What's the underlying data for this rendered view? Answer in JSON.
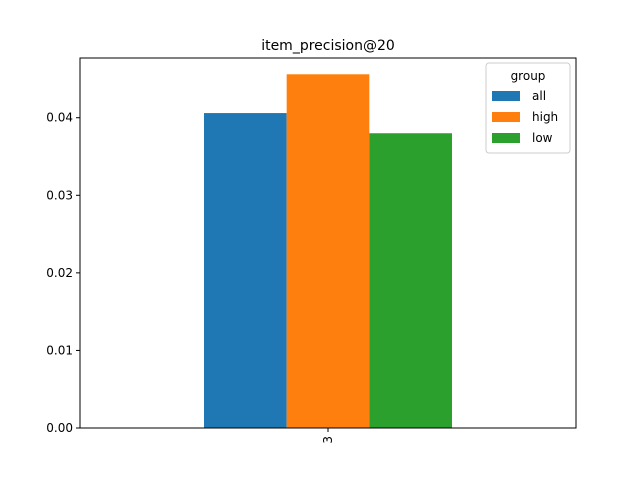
{
  "chart_data": {
    "type": "bar",
    "title": "item_precision@20",
    "xlabel": "",
    "ylabel": "",
    "categories": [
      "3"
    ],
    "series": [
      {
        "name": "all",
        "values": [
          0.0406
        ],
        "color": "#1f77b4"
      },
      {
        "name": "high",
        "values": [
          0.0456
        ],
        "color": "#ff7f0e"
      },
      {
        "name": "low",
        "values": [
          0.038
        ],
        "color": "#2ca02c"
      }
    ],
    "ylim": [
      0,
      0.0477
    ],
    "yticks": [
      0.0,
      0.01,
      0.02,
      0.03,
      0.04
    ],
    "ytick_labels": [
      "0.00",
      "0.01",
      "0.02",
      "0.03",
      "0.04"
    ],
    "grid": false,
    "legend": {
      "title": "group",
      "placement": "top-right"
    }
  }
}
